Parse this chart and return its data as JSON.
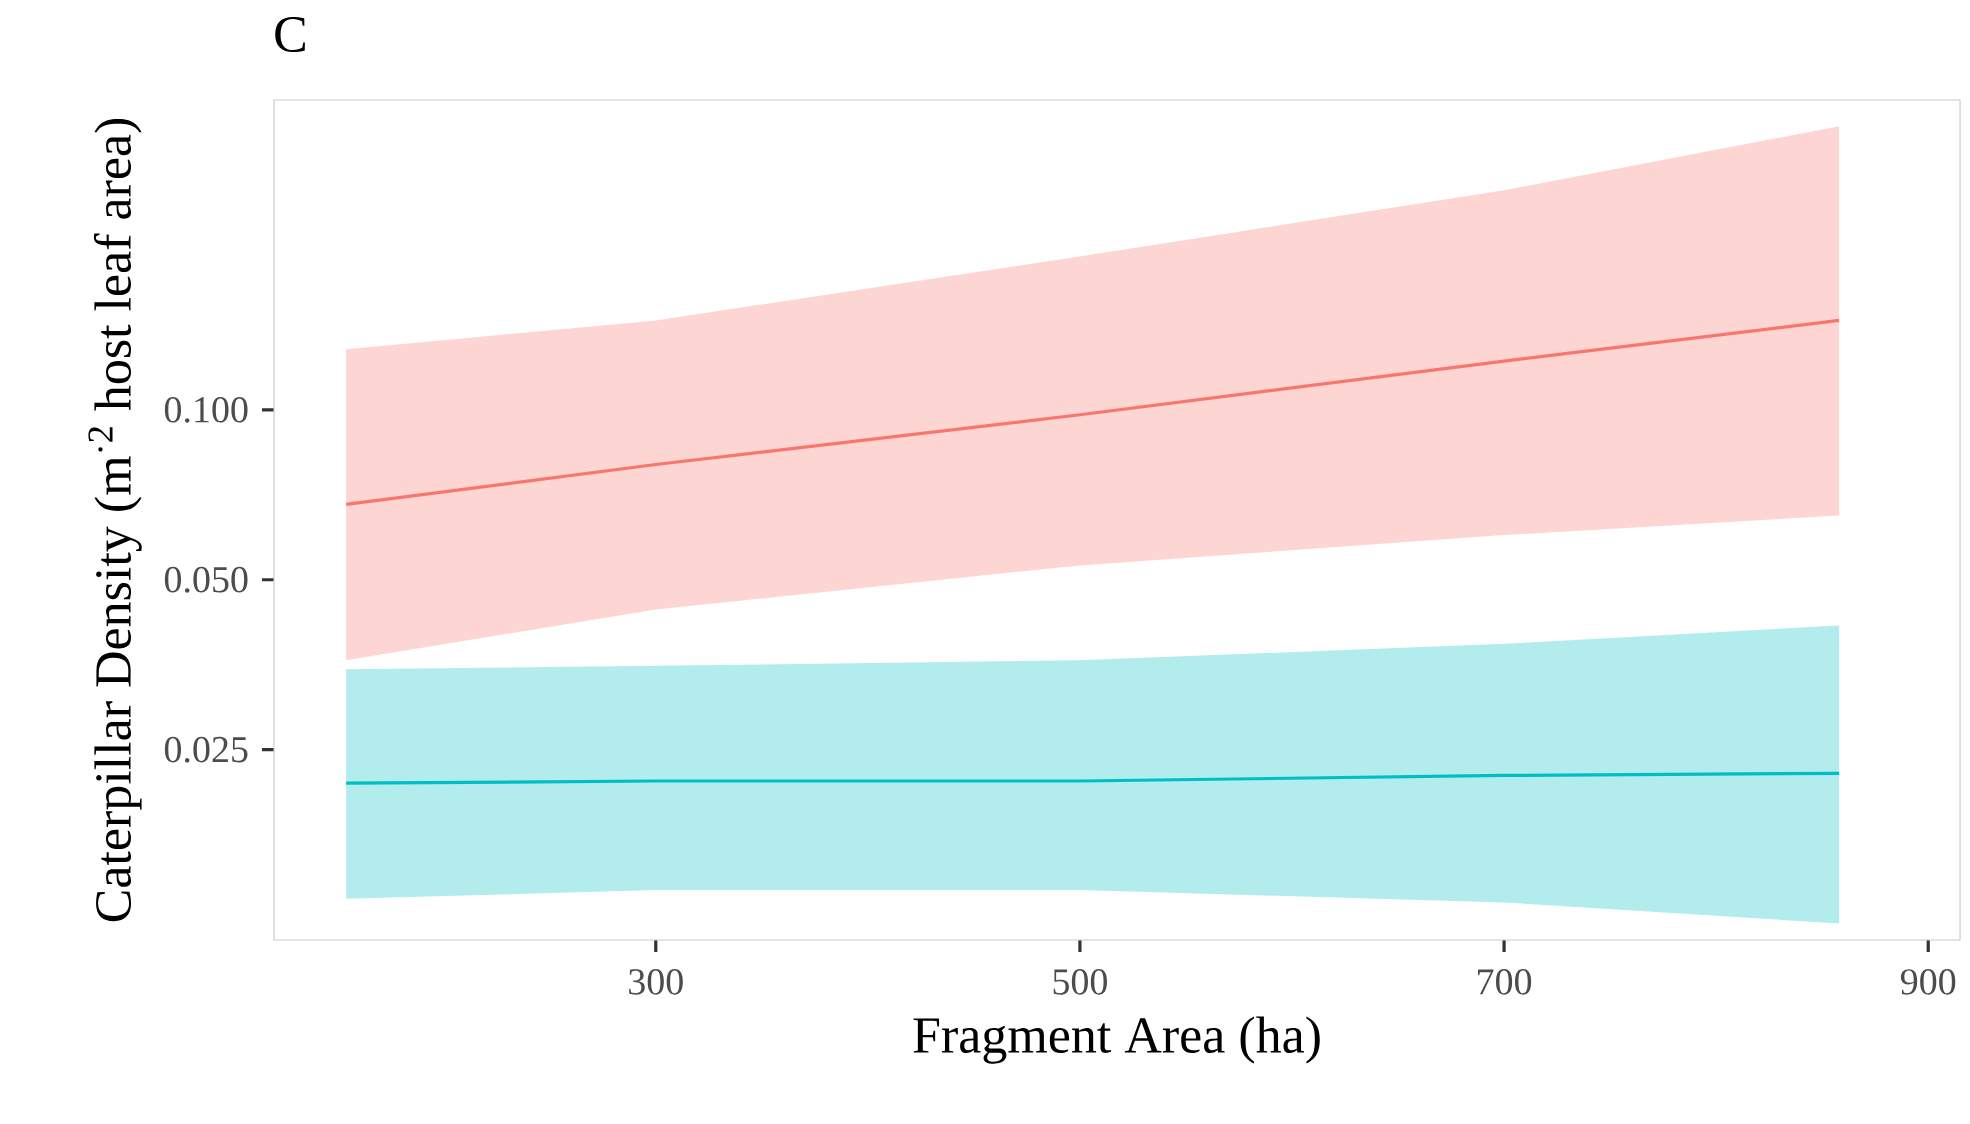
{
  "chart_data": {
    "type": "line",
    "title": "C",
    "xlabel": "Fragment Area (ha)",
    "ylabel": "Caterpillar Density (m$^{·2}$ host leaf area)",
    "log": "y",
    "xlim": [
      120,
      915
    ],
    "xticks": [
      300,
      500,
      700,
      900
    ],
    "ylim": [
      0.0115,
      0.354
    ],
    "yticks": [
      {
        "value": 0.025,
        "label": "0.025"
      },
      {
        "value": 0.05,
        "label": "0.050"
      },
      {
        "value": 0.1,
        "label": "0.100"
      }
    ],
    "x": [
      154,
      300,
      500,
      700,
      858
    ],
    "series": [
      {
        "color": "#f8766d",
        "values": [
          0.068,
          0.08,
          0.098,
          0.122,
          0.144
        ],
        "lower": [
          0.036,
          0.0443,
          0.053,
          0.06,
          0.065
        ],
        "upper": [
          0.128,
          0.144,
          0.187,
          0.245,
          0.318
        ]
      },
      {
        "color": "#00bfc4",
        "values": [
          0.0218,
          0.022,
          0.022,
          0.0225,
          0.0227
        ],
        "lower": [
          0.0136,
          0.0141,
          0.0141,
          0.0134,
          0.0123
        ],
        "upper": [
          0.0347,
          0.0352,
          0.036,
          0.0385,
          0.0415
        ]
      }
    ]
  }
}
